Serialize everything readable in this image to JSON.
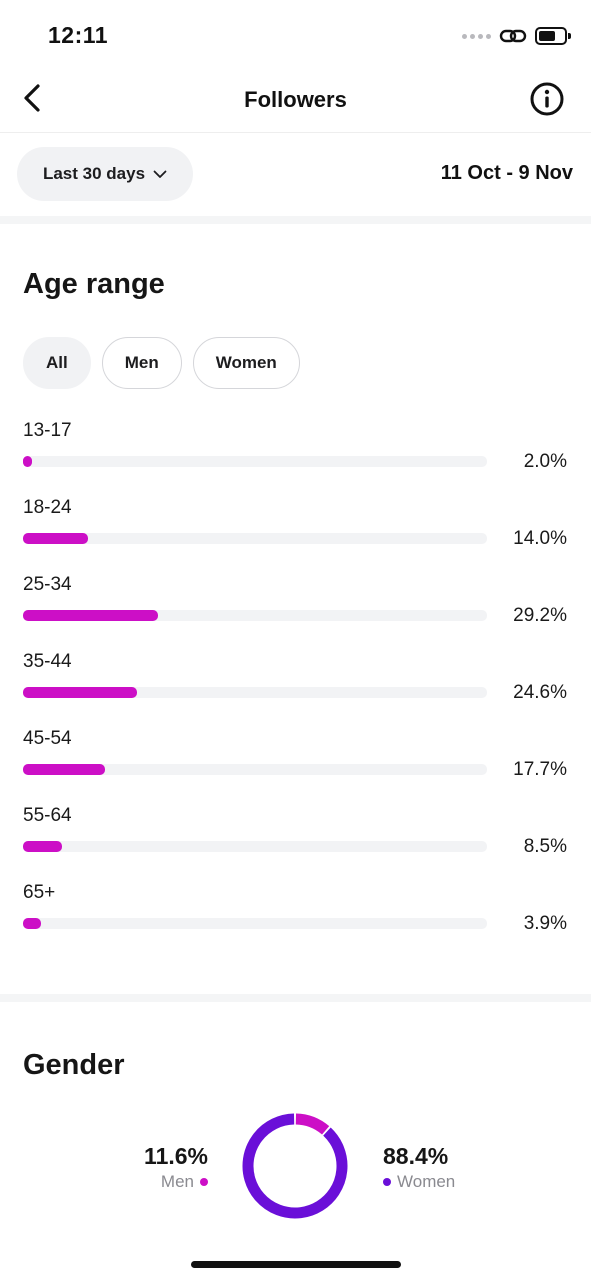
{
  "status_bar": {
    "time": "12:11"
  },
  "header": {
    "title": "Followers",
    "back_icon": "chevron-left-icon",
    "info_icon": "info-icon"
  },
  "date_filter": {
    "range_label": "Last 30 days",
    "date_range": "11 Oct - 9 Nov"
  },
  "age_range": {
    "title": "Age range",
    "filters": [
      {
        "label": "All",
        "selected": true
      },
      {
        "label": "Men",
        "selected": false
      },
      {
        "label": "Women",
        "selected": false
      }
    ],
    "bar_color": "#cc0fc6"
  },
  "gender": {
    "title": "Gender",
    "men": {
      "pct_label": "11.6%",
      "label": "Men",
      "value": 11.6,
      "color": "#cc0fc6"
    },
    "women": {
      "pct_label": "88.4%",
      "label": "Women",
      "value": 88.4,
      "color": "#6a0fd8"
    }
  },
  "chart_data": [
    {
      "type": "bar",
      "title": "Age range",
      "categories": [
        "13-17",
        "18-24",
        "25-34",
        "35-44",
        "45-54",
        "55-64",
        "65+"
      ],
      "values": [
        2.0,
        14.0,
        29.2,
        24.6,
        17.7,
        8.5,
        3.9
      ],
      "value_labels": [
        "2.0%",
        "14.0%",
        "29.2%",
        "24.6%",
        "17.7%",
        "8.5%",
        "3.9%"
      ],
      "xlim": [
        0,
        100
      ]
    },
    {
      "type": "pie",
      "title": "Gender",
      "categories": [
        "Men",
        "Women"
      ],
      "values": [
        11.6,
        88.4
      ]
    }
  ]
}
